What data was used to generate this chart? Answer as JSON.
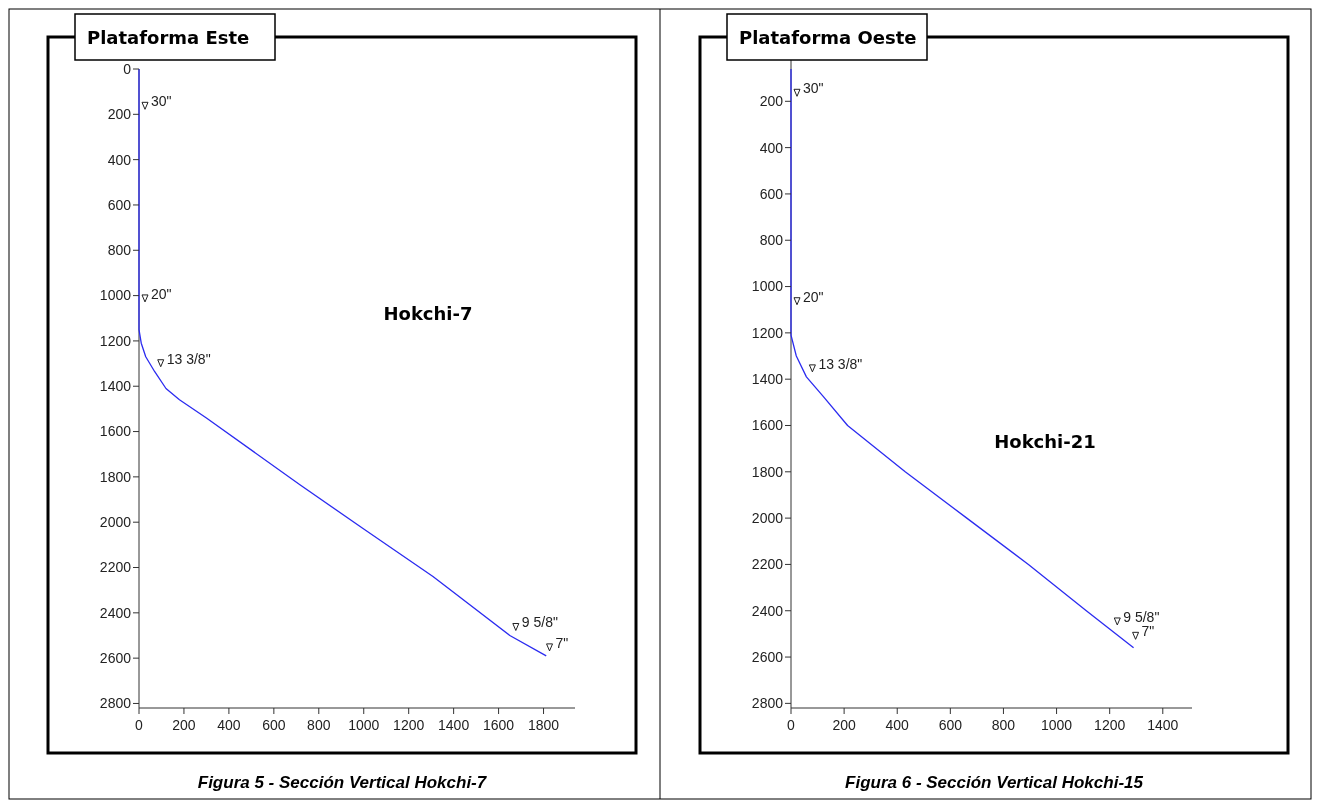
{
  "chart_data": [
    {
      "type": "line",
      "title": "Plataforma Este",
      "subtitle": "Hokchi-7",
      "xlim": [
        0,
        1940
      ],
      "xticks": [
        0,
        200,
        400,
        600,
        800,
        1000,
        1200,
        1400,
        1600,
        1800
      ],
      "ylim": [
        2820,
        0
      ],
      "yticks": [
        0,
        200,
        400,
        600,
        800,
        1000,
        1200,
        1400,
        1600,
        1800,
        2000,
        2200,
        2400,
        2600,
        2800
      ],
      "grid": false,
      "marker": "none",
      "line_style": "solid",
      "series": [
        {
          "color": "#2b2bf0",
          "x": [
            0,
            0,
            10,
            30,
            70,
            120,
            180,
            300,
            716,
            1000,
            1308,
            1650,
            1812
          ],
          "values": [
            0,
            1150,
            1210,
            1270,
            1336,
            1410,
            1460,
            1540,
            1835,
            2030,
            2240,
            2500,
            2590
          ]
        }
      ],
      "annotations": [
        {
          "text": "30\"",
          "x": 0,
          "y": 200
        },
        {
          "text": "20\"",
          "x": 0,
          "y": 1050
        },
        {
          "text": "13 3/8\"",
          "x": 70,
          "y": 1336
        },
        {
          "text": "9 5/8\"",
          "x": 1650,
          "y": 2500
        },
        {
          "text": "7\"",
          "x": 1800,
          "y": 2590
        },
        "Figura 5 - Sección Vertical Hokchi-7"
      ]
    },
    {
      "type": "line",
      "title": "Plataforma Oeste",
      "subtitle": "Hokchi-21",
      "xlim": [
        0,
        1510
      ],
      "xticks": [
        0,
        200,
        400,
        600,
        800,
        1000,
        1200,
        1400
      ],
      "ylim": [
        2820,
        0
      ],
      "yticks": [
        200,
        400,
        600,
        800,
        1000,
        1200,
        1400,
        1600,
        1800,
        2000,
        2200,
        2400,
        2600,
        2800
      ],
      "grid": false,
      "marker": "none",
      "line_style": "solid",
      "series": [
        {
          "color": "#2b2bf0",
          "x": [
            0,
            0,
            20,
            58,
            122,
            213,
            430,
            662,
            894,
            1112,
            1290
          ],
          "values": [
            60,
            1210,
            1300,
            1390,
            1475,
            1600,
            1800,
            2000,
            2200,
            2400,
            2560
          ]
        }
      ],
      "annotations": [
        {
          "text": "30\"",
          "x": 0,
          "y": 200
        },
        {
          "text": "20\"",
          "x": 0,
          "y": 1100
        },
        {
          "text": "13 3/8\"",
          "x": 58,
          "y": 1390
        },
        {
          "text": "9 5/8\"",
          "x": 1206,
          "y": 2483
        },
        {
          "text": "7\"",
          "x": 1275,
          "y": 2545
        },
        "Figura 6 - Sección Vertical Hokchi-15"
      ]
    }
  ]
}
